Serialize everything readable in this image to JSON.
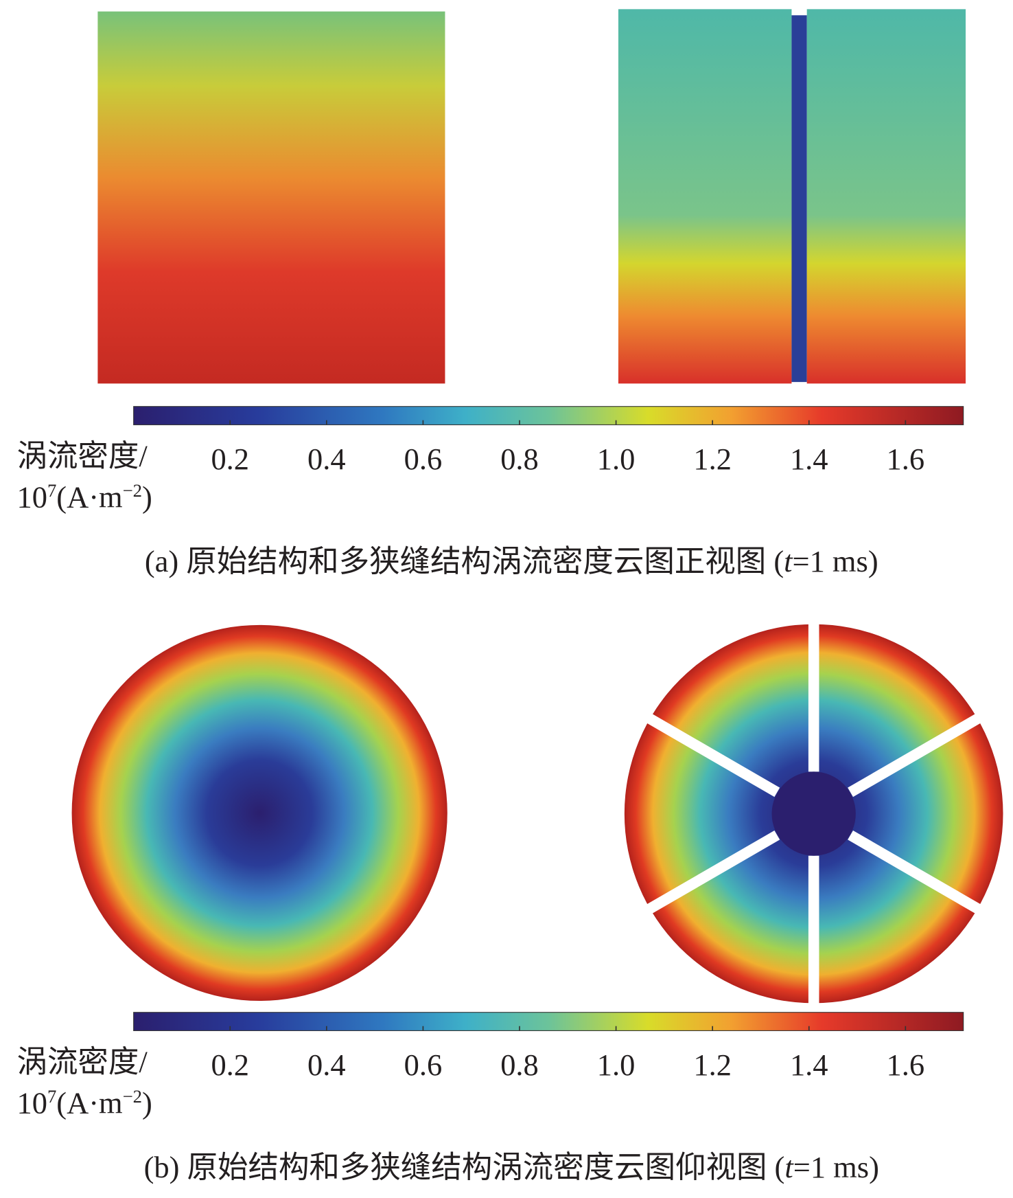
{
  "panels": [
    {
      "colorbar": {
        "lim": [
          0,
          1.72
        ],
        "ticks": [
          0.2,
          0.4,
          0.6,
          0.8,
          {
            "value": 1,
            "label": "1.0"
          },
          1.2,
          1.4,
          1.6
        ],
        "label": {
          "line1": "涡流密度/",
          "base": "10",
          "exp": "7",
          "unit": "(A·m",
          "unit_exp": "−2",
          "close": ")"
        }
      },
      "caption": {
        "before": "(a) 原始结构和多狭缝结构涡流密度云图正视图 (",
        "italic": "t",
        "after": "=1 ms)"
      }
    },
    {
      "colorbar": {
        "lim": [
          0,
          1.72
        ],
        "ticks": [
          0.2,
          0.4,
          0.6,
          0.8,
          {
            "value": 1,
            "label": "1.0"
          },
          1.2,
          1.4,
          1.6
        ],
        "label": {
          "line1": "涡流密度/",
          "base": "10",
          "exp": "7",
          "unit": "(A·m",
          "unit_exp": "−2",
          "close": ")"
        }
      },
      "caption": {
        "before": "(b) 原始结构和多狭缝结构涡流密度云图仰视图 (",
        "italic": "t",
        "after": "=1 ms)"
      }
    }
  ]
}
